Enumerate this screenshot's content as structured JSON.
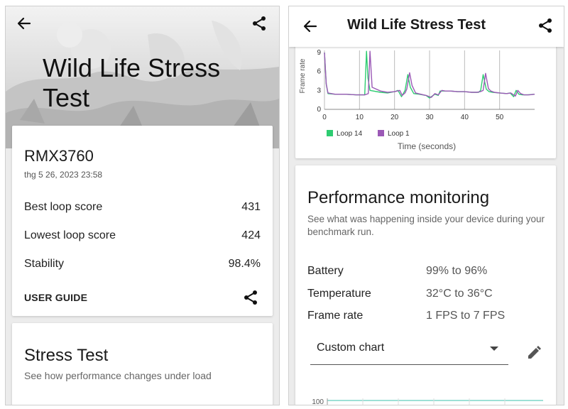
{
  "left": {
    "title": "Wild Life Stress Test",
    "device": {
      "name": "RMX3760",
      "date": "thg 5 26, 2023 23:58"
    },
    "scores": [
      {
        "label": "Best loop score",
        "value": "431"
      },
      {
        "label": "Lowest loop score",
        "value": "424"
      },
      {
        "label": "Stability",
        "value": "98.4%"
      }
    ],
    "user_guide_label": "USER GUIDE",
    "stress": {
      "title": "Stress Test",
      "subtitle": "See how performance changes under load"
    },
    "icons": {
      "back": "arrow-back-icon",
      "share": "share-icon"
    }
  },
  "right": {
    "appbar_title": "Wild Life Stress Test",
    "chart_data": {
      "type": "line",
      "ylabel": "Frame rate",
      "xlabel": "Time (seconds)",
      "x_ticks": [
        "0",
        "10",
        "20",
        "30",
        "40",
        "50"
      ],
      "y_ticks": [
        "0",
        "3",
        "6",
        "9"
      ],
      "xlim": [
        0,
        60
      ],
      "ylim": [
        0,
        9
      ],
      "series": [
        {
          "name": "Loop 14",
          "color": "#2ecc71",
          "x": [
            0,
            0.5,
            1,
            3,
            6,
            9,
            11.5,
            12,
            12.4,
            13,
            16,
            18,
            20,
            21,
            22,
            22.5,
            23,
            23.8,
            24.5,
            25.5,
            27,
            29,
            30,
            31.5,
            32.5,
            33,
            34.5,
            36,
            38,
            40,
            42,
            43,
            44,
            44.6,
            45.3,
            46.2,
            47,
            48,
            50,
            52,
            53,
            54,
            54.7,
            55.5,
            56.5,
            58,
            60
          ],
          "y": [
            9,
            4,
            2.5,
            2.4,
            2.4,
            2.3,
            2.3,
            9.2,
            5,
            3,
            2.7,
            2.6,
            2.8,
            3.0,
            2.0,
            2.5,
            3,
            5.5,
            3.5,
            2.5,
            2.4,
            2.2,
            1.8,
            2.4,
            2.2,
            2.9,
            2.9,
            2.9,
            2.8,
            2.8,
            2.7,
            2.7,
            2.7,
            3.0,
            5.5,
            3.2,
            2.8,
            2.7,
            2.6,
            2.5,
            2.6,
            2.0,
            3.0,
            2.4,
            2.3,
            2.3,
            2.4
          ]
        },
        {
          "name": "Loop 1",
          "color": "#9b59b6",
          "x": [
            0,
            0.5,
            1,
            3,
            6,
            9,
            11.5,
            12.5,
            13,
            13.6,
            16,
            18,
            20,
            21.5,
            22.2,
            23,
            23.5,
            24.3,
            25,
            26,
            27.5,
            29,
            30.5,
            31.5,
            32.5,
            33.5,
            34.5,
            36,
            38,
            40,
            42,
            43.5,
            44.5,
            45.3,
            46,
            46.8,
            47.5,
            48.5,
            50,
            52,
            53.2,
            54.5,
            55.2,
            56,
            57,
            58.5,
            60
          ],
          "y": [
            9,
            4,
            2.6,
            2.4,
            2.4,
            2.3,
            2.3,
            2.5,
            9.2,
            3.5,
            2.9,
            2.7,
            2.8,
            3.0,
            2.2,
            2.6,
            3.2,
            5.8,
            3.8,
            2.6,
            2.4,
            2.2,
            1.9,
            2.5,
            2.3,
            3.0,
            2.9,
            2.9,
            2.8,
            2.8,
            2.7,
            2.7,
            2.8,
            3.0,
            5.7,
            3.3,
            2.9,
            2.7,
            2.6,
            2.5,
            2.6,
            2.1,
            3.0,
            2.5,
            2.3,
            2.3,
            2.4
          ]
        }
      ],
      "legend": [
        {
          "name": "Loop 14",
          "color": "#2ecc71"
        },
        {
          "name": "Loop 1",
          "color": "#9b59b6"
        }
      ]
    },
    "performance": {
      "title": "Performance monitoring",
      "subtitle": "See what was happening inside your device during your benchmark run.",
      "rows": [
        {
          "label": "Battery",
          "value": "99% to 96%"
        },
        {
          "label": "Temperature",
          "value": "32°C to 36°C"
        },
        {
          "label": "Frame rate",
          "value": "1 FPS to 7 FPS"
        }
      ],
      "dropdown_value": "Custom chart",
      "mini_chart_tick": "100"
    },
    "icons": {
      "back": "arrow-back-icon",
      "share": "share-icon",
      "edit": "pencil-icon"
    }
  }
}
